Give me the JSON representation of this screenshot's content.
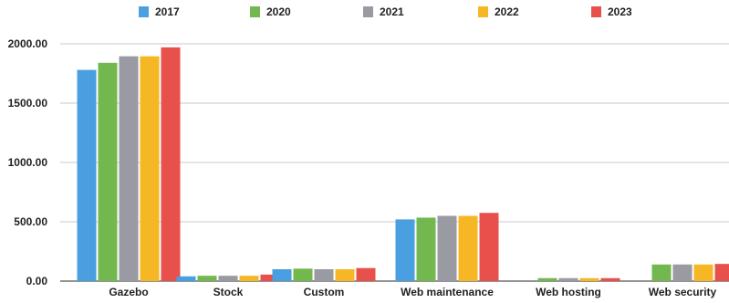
{
  "chart_data": {
    "type": "bar",
    "title": "",
    "xlabel": "",
    "ylabel": "",
    "ylim": [
      0,
      2000
    ],
    "yticks": [
      "0.00",
      "500.00",
      "1000.00",
      "1500.00",
      "2000.00"
    ],
    "ytick_values": [
      0,
      500,
      1000,
      1500,
      2000
    ],
    "grid": true,
    "legend_position": "top",
    "categories": [
      "Gazebo",
      "Stock",
      "Custom",
      "Web maintenance",
      "Web hosting",
      "Web security"
    ],
    "series": [
      {
        "name": "2017",
        "color": "#4a9fe0",
        "values": [
          1780,
          40,
          100,
          520,
          0,
          0
        ]
      },
      {
        "name": "2020",
        "color": "#72b84e",
        "values": [
          1840,
          45,
          105,
          535,
          25,
          140
        ]
      },
      {
        "name": "2021",
        "color": "#9a9aa3",
        "values": [
          1895,
          45,
          100,
          550,
          25,
          140
        ]
      },
      {
        "name": "2022",
        "color": "#f5b824",
        "values": [
          1895,
          45,
          100,
          550,
          25,
          140
        ]
      },
      {
        "name": "2023",
        "color": "#e8504c",
        "values": [
          1970,
          55,
          110,
          575,
          25,
          145
        ]
      }
    ]
  }
}
